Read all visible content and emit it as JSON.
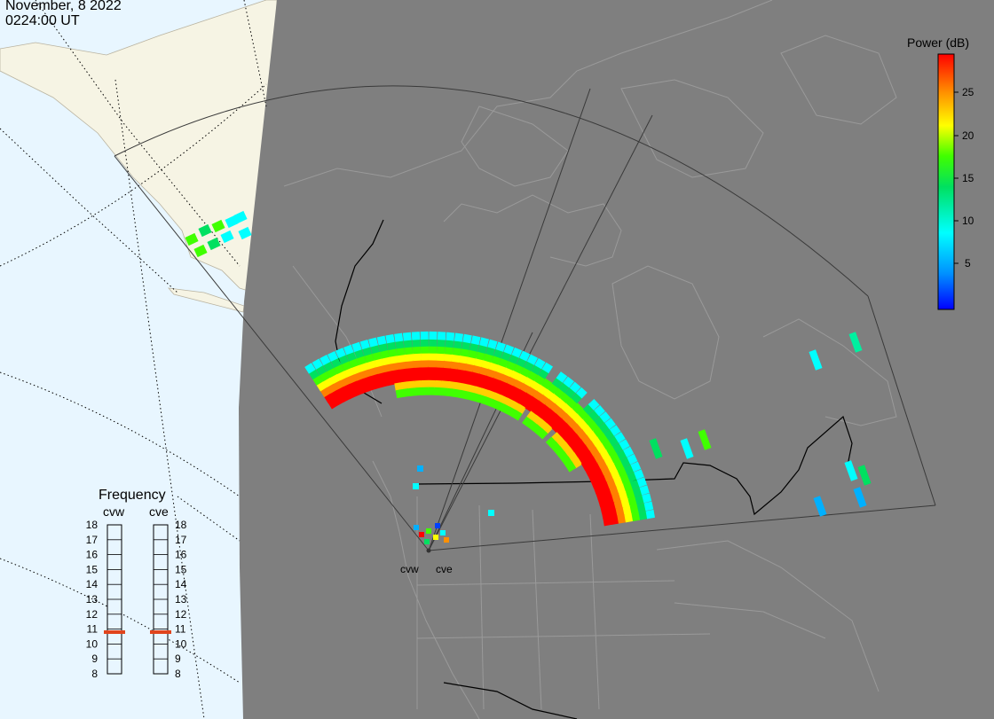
{
  "header": {
    "date": "November, 8 2022",
    "time": "0224:00 UT"
  },
  "colorbar": {
    "title": "Power (dB)",
    "ticks": [
      "25",
      "20",
      "15",
      "10",
      "5"
    ],
    "range": [
      0,
      29
    ],
    "colors": [
      "#0000ff",
      "#0090ff",
      "#00ffff",
      "#00e060",
      "#40ff00",
      "#ffff00",
      "#ff9000",
      "#ff0000"
    ]
  },
  "frequency": {
    "title": "Frequency",
    "radars": [
      "cvw",
      "cve"
    ],
    "levels": [
      "18",
      "17",
      "16",
      "15",
      "14",
      "13",
      "12",
      "11",
      "10",
      "9",
      "8"
    ],
    "selected_mhz": {
      "cvw": 10.8,
      "cve": 10.8
    },
    "marker_color": "#e0441c"
  },
  "sites": {
    "cvw": "cvw",
    "cve": "cve"
  },
  "map": {
    "ocean_color": "#e8f6ff",
    "land_night_color": "#7f7f7f",
    "land_day_color": "#f6f4e4",
    "border_color": "#9a9a9a"
  }
}
